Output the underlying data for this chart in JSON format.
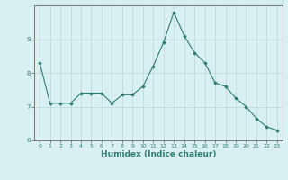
{
  "x": [
    0,
    1,
    2,
    3,
    4,
    5,
    6,
    7,
    8,
    9,
    10,
    11,
    12,
    13,
    14,
    15,
    16,
    17,
    18,
    19,
    20,
    21,
    22,
    23
  ],
  "y": [
    8.3,
    7.1,
    7.1,
    7.1,
    7.4,
    7.4,
    7.4,
    7.1,
    7.35,
    7.35,
    7.6,
    8.2,
    8.9,
    9.8,
    9.1,
    8.6,
    8.3,
    7.7,
    7.6,
    7.25,
    7.0,
    6.65,
    6.4,
    6.3
  ],
  "line_color": "#2e7d6e",
  "marker": "D",
  "markersize": 1.8,
  "linewidth": 0.8,
  "bg_color": "#d8f0f0",
  "grid_color": "#c0d4d4",
  "xlabel": "Humidex (Indice chaleur)",
  "ylim": [
    6.0,
    10.0
  ],
  "xlim": [
    -0.5,
    23.5
  ],
  "yticks": [
    6,
    7,
    8,
    9
  ],
  "xticks": [
    0,
    1,
    2,
    3,
    4,
    5,
    6,
    7,
    8,
    9,
    10,
    11,
    12,
    13,
    14,
    15,
    16,
    17,
    18,
    19,
    20,
    21,
    22,
    23
  ],
  "tick_fontsize": 4.5,
  "xlabel_fontsize": 6.5,
  "spine_color": "#666666"
}
